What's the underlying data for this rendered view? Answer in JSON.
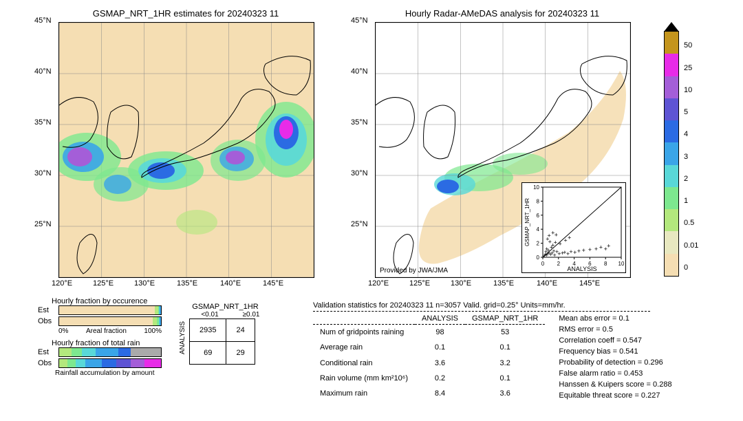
{
  "left_map": {
    "title": "GSMAP_NRT_1HR estimates for 20240323 11",
    "x_ticks": [
      "120°E",
      "125°E",
      "130°E",
      "135°E",
      "140°E",
      "145°E"
    ],
    "y_ticks": [
      "25°N",
      "30°N",
      "35°N",
      "40°N",
      "45°N"
    ],
    "bg_color": "#f5deb3"
  },
  "right_map": {
    "title": "Hourly Radar-AMeDAS analysis for 20240323 11",
    "x_ticks": [
      "120°E",
      "125°E",
      "130°E",
      "135°E",
      "140°E",
      "145°E"
    ],
    "y_ticks": [
      "25°N",
      "30°N",
      "35°N",
      "40°N",
      "45°N"
    ],
    "attribution": "Provided by JWA/JMA",
    "bg_color": "#f5deb3"
  },
  "colorbar": {
    "breaks": [
      "0",
      "0.01",
      "0.5",
      "1",
      "2",
      "3",
      "4",
      "5",
      "10",
      "25",
      "50"
    ],
    "colors": [
      "#f5deb3",
      "#e8e8c0",
      "#b3e87d",
      "#7de88f",
      "#59d8d8",
      "#3aa5e8",
      "#2b6be3",
      "#5e54d4",
      "#a45ed8",
      "#e82be8",
      "#c4951d"
    ]
  },
  "occurence": {
    "title": "Hourly fraction by occurence",
    "xlabel": "Areal fraction",
    "xmin": "0%",
    "xmax": "100%",
    "rows": [
      {
        "label": "Est",
        "segments": [
          {
            "color": "#f5deb3",
            "pct": 94
          },
          {
            "color": "#b3e87d",
            "pct": 3
          },
          {
            "color": "#7de88f",
            "pct": 1
          },
          {
            "color": "#59d8d8",
            "pct": 1
          },
          {
            "color": "#3aa5e8",
            "pct": 1
          }
        ]
      },
      {
        "label": "Obs",
        "segments": [
          {
            "color": "#f5deb3",
            "pct": 92
          },
          {
            "color": "#b3e87d",
            "pct": 4
          },
          {
            "color": "#7de88f",
            "pct": 2
          },
          {
            "color": "#59d8d8",
            "pct": 1
          },
          {
            "color": "#3aa5e8",
            "pct": 1
          }
        ]
      }
    ]
  },
  "total_rain": {
    "title": "Hourly fraction of total rain",
    "xlabel": "Rainfall accumulation by amount",
    "rows": [
      {
        "label": "Est",
        "segments": [
          {
            "color": "#b3e87d",
            "pct": 12
          },
          {
            "color": "#7de88f",
            "pct": 10
          },
          {
            "color": "#59d8d8",
            "pct": 14
          },
          {
            "color": "#3aa5e8",
            "pct": 22
          },
          {
            "color": "#2b6be3",
            "pct": 12
          },
          {
            "color": "#aaa",
            "pct": 30
          }
        ]
      },
      {
        "label": "Obs",
        "segments": [
          {
            "color": "#b3e87d",
            "pct": 8
          },
          {
            "color": "#7de88f",
            "pct": 8
          },
          {
            "color": "#59d8d8",
            "pct": 10
          },
          {
            "color": "#3aa5e8",
            "pct": 16
          },
          {
            "color": "#2b6be3",
            "pct": 14
          },
          {
            "color": "#5e54d4",
            "pct": 14
          },
          {
            "color": "#a45ed8",
            "pct": 14
          },
          {
            "color": "#e82be8",
            "pct": 16
          }
        ]
      }
    ]
  },
  "contingency": {
    "col_header": "GSMAP_NRT_1HR",
    "row_header": "ANALYSIS",
    "col_cats": [
      "<0.01",
      "≥0.01"
    ],
    "row_cats": [
      "<0.01",
      "≥0.01"
    ],
    "cells": [
      [
        "2935",
        "24"
      ],
      [
        "69",
        "29"
      ]
    ]
  },
  "validation": {
    "title": "Validation statistics for 20240323 11  n=3057 Valid. grid=0.25° Units=mm/hr.",
    "cols": [
      "",
      "ANALYSIS",
      "GSMAP_NRT_1HR"
    ],
    "rows": [
      [
        "Num of gridpoints raining",
        "98",
        "53"
      ],
      [
        "Average rain",
        "0.1",
        "0.1"
      ],
      [
        "Conditional rain",
        "3.6",
        "3.2"
      ],
      [
        "Rain volume (mm km²10⁶)",
        "0.2",
        "0.1"
      ],
      [
        "Maximum rain",
        "8.4",
        "3.6"
      ]
    ],
    "stats": [
      [
        "Mean abs error =",
        "0.1"
      ],
      [
        "RMS error =",
        "0.5"
      ],
      [
        "Correlation coeff =",
        "0.547"
      ],
      [
        "Frequency bias =",
        "0.541"
      ],
      [
        "Probability of detection =",
        "0.296"
      ],
      [
        "False alarm ratio =",
        "0.453"
      ],
      [
        "Hanssen & Kuipers score =",
        "0.288"
      ],
      [
        "Equitable threat score =",
        "0.227"
      ]
    ]
  },
  "scatter": {
    "xlabel": "ANALYSIS",
    "ylabel": "GSMAP_NRT_1HR",
    "xlim": [
      0,
      10
    ],
    "ylim": [
      0,
      10
    ],
    "ticks": [
      0,
      2,
      4,
      6,
      8,
      10
    ],
    "points": [
      [
        0.2,
        0.2
      ],
      [
        0.3,
        0.4
      ],
      [
        0.5,
        0.3
      ],
      [
        0.4,
        0.8
      ],
      [
        0.6,
        0.5
      ],
      [
        0.8,
        0.6
      ],
      [
        0.5,
        1.2
      ],
      [
        0.7,
        1.0
      ],
      [
        1.0,
        0.4
      ],
      [
        1.2,
        0.6
      ],
      [
        1.5,
        0.3
      ],
      [
        1.1,
        1.4
      ],
      [
        1.4,
        0.9
      ],
      [
        0.9,
        2.2
      ],
      [
        1.3,
        1.7
      ],
      [
        2.1,
        0.5
      ],
      [
        1.8,
        0.8
      ],
      [
        2.5,
        0.6
      ],
      [
        0.6,
        2.6
      ],
      [
        2.8,
        0.7
      ],
      [
        1.6,
        2.1
      ],
      [
        3.2,
        0.5
      ],
      [
        0.8,
        3.1
      ],
      [
        3.6,
        0.8
      ],
      [
        2.2,
        1.9
      ],
      [
        4.1,
        0.7
      ],
      [
        1.7,
        3.2
      ],
      [
        4.6,
        0.9
      ],
      [
        5.2,
        1.0
      ],
      [
        2.9,
        2.4
      ],
      [
        6.0,
        1.1
      ],
      [
        6.8,
        1.2
      ],
      [
        3.4,
        2.8
      ],
      [
        7.4,
        1.4
      ],
      [
        8.0,
        1.2
      ],
      [
        1.3,
        3.5
      ],
      [
        8.4,
        1.6
      ]
    ]
  }
}
